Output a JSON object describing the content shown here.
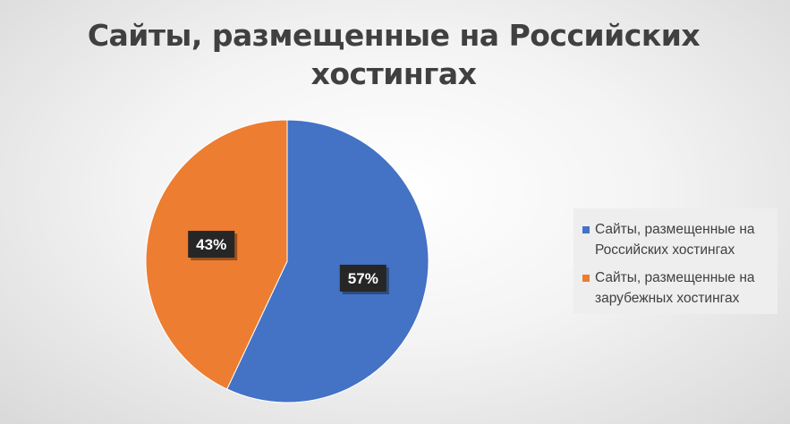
{
  "chart_data": {
    "type": "pie",
    "title": "Сайты, размещенные на Российских хостингах",
    "categories": [
      "Сайты, размещенные на Российских хостингах",
      "Сайты, размещенные на зарубежных хостингах"
    ],
    "values": [
      57,
      43
    ],
    "labels": [
      "57%",
      "43%"
    ],
    "colors": [
      "#4472c4",
      "#ed7d31"
    ],
    "legend_position": "right"
  }
}
